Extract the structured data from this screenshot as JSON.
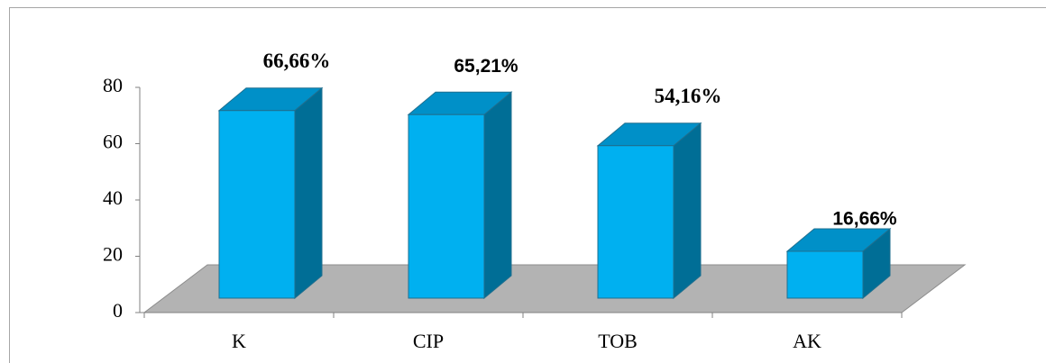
{
  "chart_data": {
    "type": "bar3d",
    "categories": [
      "K",
      "CIP",
      "TOB",
      "AK"
    ],
    "values": [
      66.66,
      65.21,
      54.16,
      16.66
    ],
    "value_labels": [
      "66,66%",
      "65,21%",
      "54,16%",
      "16,66%"
    ],
    "color": "#00b0f0",
    "ylim": [
      0,
      80
    ],
    "yticks": [
      0,
      20,
      40,
      60,
      80
    ],
    "grid": false
  }
}
